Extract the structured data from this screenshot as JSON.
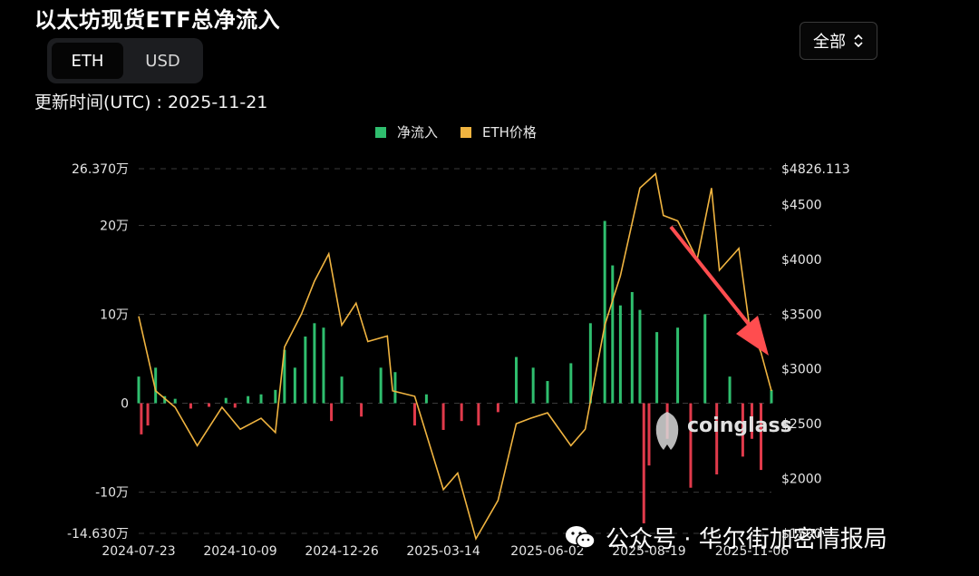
{
  "title": "以太坊现货ETF总净流入",
  "unit_toggle": {
    "options": [
      "ETH",
      "USD"
    ],
    "selected": "ETH"
  },
  "range_select": {
    "value": "全部",
    "icon": "chevron-updown-icon"
  },
  "updated": "更新时间(UTC) : 2025-11-21",
  "watermark": {
    "brand": "coinglass",
    "text": "公众号 · 华尔街加密情报局",
    "icon": "wechat-icon"
  },
  "colors": {
    "inflow": "#2fbe6e",
    "outflow": "#e03a4b",
    "price": "#f0b440",
    "grid": "#3a3a3a",
    "arrow": "#ff4d4f"
  },
  "chart_data": {
    "type": "bar",
    "legend": [
      "净流入",
      "ETH价格"
    ],
    "legend_position": "top-center",
    "grid": true,
    "x_ticks": [
      "2024-07-23",
      "2024-10-09",
      "2024-12-26",
      "2025-03-14",
      "2025-06-02",
      "2025-08-19",
      "2025-11-06"
    ],
    "x_range": [
      "2024-07-23",
      "2025-11-21"
    ],
    "y_left": {
      "ticks": [
        263700,
        200000,
        100000,
        0,
        -100000,
        -146300
      ],
      "tick_labels": [
        "26.370万",
        "20万",
        "10万",
        "0",
        "-10万",
        "-14.630万"
      ],
      "range": [
        -146300,
        263700
      ]
    },
    "y_right": {
      "ticks": [
        4826.113,
        4500,
        4000,
        3500,
        3000,
        2500,
        2000,
        1500
      ],
      "tick_labels": [
        "$4826.113",
        "$4500",
        "$4000",
        "$3500",
        "$3000",
        "$2500",
        "$2000",
        "$1500"
      ],
      "range": [
        1500,
        4826.113
      ]
    },
    "flows": [
      [
        "2024-07-23",
        30000
      ],
      [
        "2024-07-25",
        -35000
      ],
      [
        "2024-07-30",
        -25000
      ],
      [
        "2024-08-05",
        40000
      ],
      [
        "2024-08-12",
        8000
      ],
      [
        "2024-08-20",
        5000
      ],
      [
        "2024-09-01",
        -6000
      ],
      [
        "2024-09-15",
        -4000
      ],
      [
        "2024-09-28",
        6000
      ],
      [
        "2024-10-05",
        -5000
      ],
      [
        "2024-10-15",
        8000
      ],
      [
        "2024-10-25",
        10000
      ],
      [
        "2024-11-05",
        15000
      ],
      [
        "2024-11-12",
        60000
      ],
      [
        "2024-11-20",
        40000
      ],
      [
        "2024-11-28",
        75000
      ],
      [
        "2024-12-05",
        90000
      ],
      [
        "2024-12-12",
        85000
      ],
      [
        "2024-12-18",
        -20000
      ],
      [
        "2024-12-26",
        30000
      ],
      [
        "2025-01-10",
        -15000
      ],
      [
        "2025-01-25",
        40000
      ],
      [
        "2025-02-05",
        35000
      ],
      [
        "2025-02-20",
        -25000
      ],
      [
        "2025-03-01",
        10000
      ],
      [
        "2025-03-14",
        -30000
      ],
      [
        "2025-03-28",
        -20000
      ],
      [
        "2025-04-10",
        -25000
      ],
      [
        "2025-04-25",
        -10000
      ],
      [
        "2025-05-09",
        52000
      ],
      [
        "2025-05-22",
        40000
      ],
      [
        "2025-06-02",
        25000
      ],
      [
        "2025-06-20",
        45000
      ],
      [
        "2025-07-05",
        90000
      ],
      [
        "2025-07-16",
        205000
      ],
      [
        "2025-07-22",
        155000
      ],
      [
        "2025-07-28",
        110000
      ],
      [
        "2025-08-06",
        125000
      ],
      [
        "2025-08-12",
        105000
      ],
      [
        "2025-08-15",
        -135000
      ],
      [
        "2025-08-19",
        -70000
      ],
      [
        "2025-08-25",
        80000
      ],
      [
        "2025-09-02",
        -40000
      ],
      [
        "2025-09-10",
        85000
      ],
      [
        "2025-09-20",
        -95000
      ],
      [
        "2025-10-01",
        100000
      ],
      [
        "2025-10-10",
        -80000
      ],
      [
        "2025-10-20",
        30000
      ],
      [
        "2025-10-30",
        -60000
      ],
      [
        "2025-11-06",
        -40000
      ],
      [
        "2025-11-13",
        -75000
      ],
      [
        "2025-11-21",
        15000
      ]
    ],
    "price": [
      [
        "2024-07-23",
        3480
      ],
      [
        "2024-08-05",
        2800
      ],
      [
        "2024-08-20",
        2650
      ],
      [
        "2024-09-06",
        2300
      ],
      [
        "2024-09-25",
        2650
      ],
      [
        "2024-10-09",
        2450
      ],
      [
        "2024-10-25",
        2550
      ],
      [
        "2024-11-05",
        2420
      ],
      [
        "2024-11-12",
        3200
      ],
      [
        "2024-11-25",
        3500
      ],
      [
        "2024-12-05",
        3800
      ],
      [
        "2024-12-16",
        4050
      ],
      [
        "2024-12-26",
        3400
      ],
      [
        "2025-01-06",
        3600
      ],
      [
        "2025-01-15",
        3250
      ],
      [
        "2025-01-30",
        3300
      ],
      [
        "2025-02-03",
        2800
      ],
      [
        "2025-02-20",
        2750
      ],
      [
        "2025-03-14",
        1900
      ],
      [
        "2025-03-25",
        2050
      ],
      [
        "2025-04-08",
        1450
      ],
      [
        "2025-04-25",
        1800
      ],
      [
        "2025-05-09",
        2500
      ],
      [
        "2025-05-20",
        2550
      ],
      [
        "2025-06-02",
        2600
      ],
      [
        "2025-06-20",
        2300
      ],
      [
        "2025-07-01",
        2450
      ],
      [
        "2025-07-16",
        3400
      ],
      [
        "2025-07-28",
        3850
      ],
      [
        "2025-08-12",
        4650
      ],
      [
        "2025-08-24",
        4780
      ],
      [
        "2025-08-30",
        4400
      ],
      [
        "2025-09-10",
        4350
      ],
      [
        "2025-09-25",
        4000
      ],
      [
        "2025-10-06",
        4650
      ],
      [
        "2025-10-12",
        3900
      ],
      [
        "2025-10-27",
        4100
      ],
      [
        "2025-11-04",
        3400
      ],
      [
        "2025-11-13",
        3150
      ],
      [
        "2025-11-21",
        2800
      ]
    ]
  }
}
